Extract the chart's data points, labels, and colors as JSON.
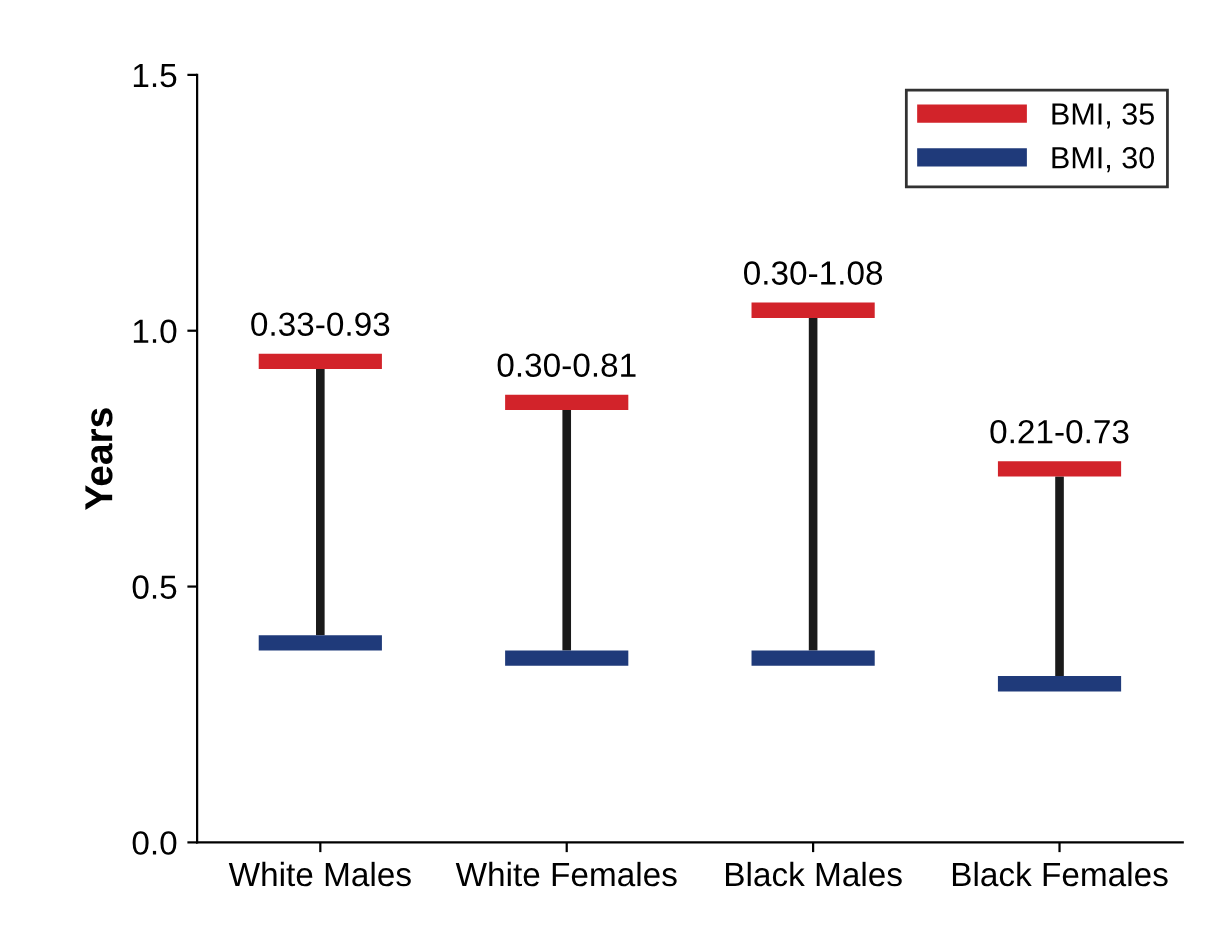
{
  "chart_data": {
    "type": "bar",
    "ylabel": "Years",
    "categories": [
      "White Males",
      "White Females",
      "Black Males",
      "Black Females"
    ],
    "ylim": [
      0,
      1.5
    ],
    "yticks": [
      {
        "value": 0,
        "label": "0.0"
      },
      {
        "value": 0.5,
        "label": "0.5"
      },
      {
        "value": 1.0,
        "label": "1.0"
      },
      {
        "value": 1.5,
        "label": "1.5"
      }
    ],
    "grid": false,
    "legend": "top right",
    "series": [
      {
        "color": "#1a1a1a",
        "base": [
          0.405,
          0.375,
          0.375,
          0.325
        ],
        "values": [
          0.52,
          0.47,
          0.65,
          0.39
        ]
      },
      {
        "name": "BMI, 35",
        "color": "#d2232a",
        "base": [
          0.925,
          0.845,
          1.025,
          0.715
        ],
        "values": [
          0.03,
          0.03,
          0.03,
          0.03
        ]
      },
      {
        "name": "BMI, 30",
        "color": "#1f3a7a",
        "base": [
          0.375,
          0.345,
          0.345,
          0.295
        ],
        "values": [
          0.03,
          0.03,
          0.03,
          0.03
        ]
      }
    ],
    "annotations": [
      "0.33-0.93",
      "0.30-0.81",
      "0.30-1.08",
      "0.21-0.73"
    ]
  }
}
